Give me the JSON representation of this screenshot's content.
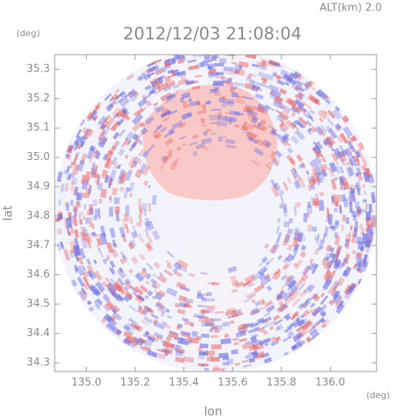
{
  "chart_data": {
    "type": "radar-image",
    "title": "2012/12/03 21:08:04",
    "subtitle": "ALT(km) 2.0",
    "y_unit": "(deg)",
    "x_unit": "(deg)",
    "x_label": "lon",
    "y_label": "lat",
    "xlim": [
      134.87,
      136.19
    ],
    "ylim": [
      34.27,
      35.35
    ],
    "xticks": [
      {
        "value": 135,
        "label": "135.0"
      },
      135.2,
      135.4,
      135.6,
      135.8,
      {
        "value": 136,
        "label": "136.0"
      }
    ],
    "yticks": [
      34.3,
      34.4,
      34.5,
      34.6,
      34.7,
      34.8,
      34.9,
      {
        "value": 35,
        "label": "35.0"
      },
      35.1,
      35.2,
      35.3
    ]
  }
}
